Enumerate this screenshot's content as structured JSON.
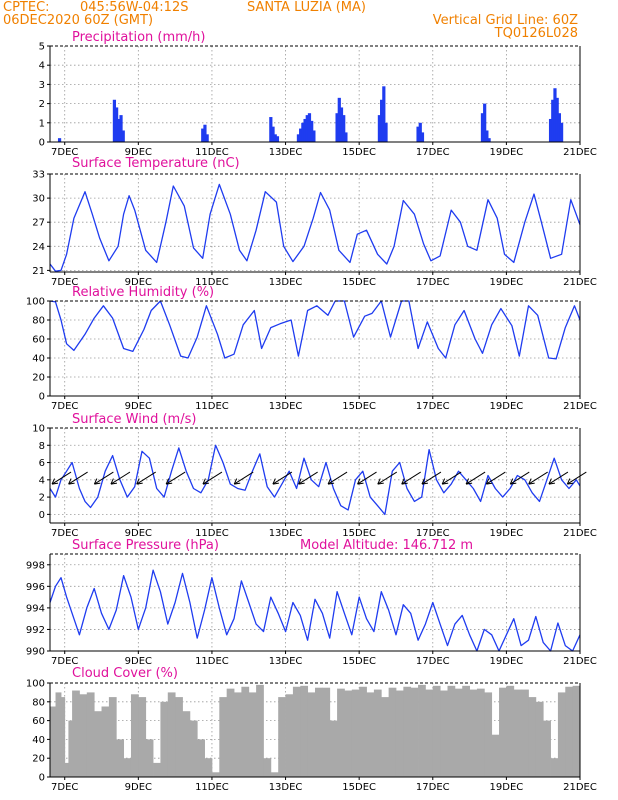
{
  "header": {
    "source": "CPTEC:",
    "location_coords": "045:56W-04:12S",
    "location_name": "SANTA LUZIA (MA)",
    "run": "06DEC2020 60Z (GMT)",
    "grid_note": "Vertical Grid Line: 60Z",
    "code": "TQ0126L028"
  },
  "colors": {
    "header": "#f08000",
    "title": "#e0119c",
    "series": "#1f3cf0",
    "cloud": "#a9a9a9",
    "grid": "#9a9a9a"
  },
  "chart_data": [
    {
      "type": "bar",
      "title": "Precipitation (mm/h)",
      "x_unit": "days since 06DEC 00Z",
      "xlim": [
        6.6,
        21.0
      ],
      "ylim": [
        0,
        5
      ],
      "y_ticks": [
        "0",
        "1",
        "2",
        "3",
        "4",
        "5"
      ],
      "x_ticks": [
        "7DEC",
        "9DEC",
        "11DEC",
        "13DEC",
        "15DEC",
        "17DEC",
        "19DEC",
        "21DEC"
      ],
      "x": [
        6.86,
        8.35,
        8.41,
        8.47,
        8.53,
        8.59,
        10.75,
        10.81,
        10.87,
        12.6,
        12.66,
        12.72,
        12.78,
        13.35,
        13.41,
        13.47,
        13.53,
        13.59,
        13.65,
        13.71,
        13.77,
        14.4,
        14.46,
        14.52,
        14.58,
        14.64,
        15.55,
        15.61,
        15.67,
        15.73,
        16.6,
        16.66,
        16.72,
        18.35,
        18.41,
        18.47,
        18.53,
        20.2,
        20.26,
        20.32,
        20.38,
        20.44,
        20.5
      ],
      "values": [
        0.2,
        2.2,
        1.8,
        1.2,
        1.4,
        0.6,
        0.7,
        0.9,
        0.4,
        1.3,
        0.8,
        0.4,
        0.3,
        0.4,
        0.7,
        1.0,
        1.2,
        1.4,
        1.5,
        1.1,
        0.6,
        1.5,
        2.3,
        1.8,
        1.4,
        0.5,
        1.4,
        2.2,
        2.9,
        1.0,
        0.8,
        1.0,
        0.5,
        1.5,
        2.0,
        0.6,
        0.2,
        1.2,
        2.2,
        2.8,
        2.3,
        1.5,
        1.0
      ]
    },
    {
      "type": "line",
      "title": "Surface Temperature (nC)",
      "x_unit": "days since 06DEC 00Z",
      "xlim": [
        6.6,
        21.0
      ],
      "ylim": [
        20.8,
        33
      ],
      "y_ticks": [
        "21",
        "24",
        "27",
        "30",
        "33"
      ],
      "x_ticks": [
        "7DEC",
        "9DEC",
        "11DEC",
        "13DEC",
        "15DEC",
        "17DEC",
        "19DEC",
        "21DEC"
      ],
      "x": [
        6.6,
        6.75,
        6.9,
        7.05,
        7.25,
        7.55,
        7.75,
        7.95,
        8.2,
        8.45,
        8.6,
        8.75,
        8.9,
        9.2,
        9.5,
        9.75,
        9.95,
        10.25,
        10.5,
        10.75,
        10.95,
        11.2,
        11.5,
        11.75,
        11.95,
        12.2,
        12.45,
        12.75,
        12.95,
        13.2,
        13.5,
        13.75,
        13.95,
        14.2,
        14.45,
        14.75,
        14.95,
        15.2,
        15.5,
        15.75,
        15.95,
        16.2,
        16.5,
        16.75,
        16.95,
        17.2,
        17.5,
        17.75,
        17.95,
        18.2,
        18.5,
        18.75,
        18.95,
        19.2,
        19.5,
        19.75,
        19.95,
        20.2,
        20.5,
        20.75,
        21.0
      ],
      "values": [
        21.8,
        20.9,
        21.0,
        23.0,
        27.5,
        30.8,
        28.0,
        25.0,
        22.2,
        24.0,
        28.0,
        30.3,
        28.5,
        23.5,
        22.0,
        27.0,
        31.5,
        29.0,
        23.8,
        22.5,
        28.0,
        31.7,
        28.0,
        23.5,
        22.2,
        26.0,
        30.8,
        29.5,
        24.0,
        22.1,
        24.0,
        27.5,
        30.7,
        28.5,
        23.5,
        22.0,
        25.5,
        26.0,
        23.0,
        21.8,
        24.0,
        29.7,
        28.0,
        24.3,
        22.2,
        22.8,
        28.5,
        27.0,
        24.0,
        23.5,
        29.8,
        27.5,
        23.0,
        22.0,
        27.0,
        30.5,
        27.0,
        22.5,
        23.0,
        29.8,
        26.7
      ]
    },
    {
      "type": "line",
      "title": "Relative Humidity (%)",
      "x_unit": "days since 06DEC 00Z",
      "xlim": [
        6.6,
        21.0
      ],
      "ylim": [
        0,
        100
      ],
      "y_ticks": [
        "0",
        "20",
        "40",
        "60",
        "80",
        "100"
      ],
      "x_ticks": [
        "7DEC",
        "9DEC",
        "11DEC",
        "13DEC",
        "15DEC",
        "17DEC",
        "19DEC",
        "21DEC"
      ],
      "x": [
        6.6,
        6.75,
        6.9,
        7.05,
        7.25,
        7.55,
        7.8,
        8.05,
        8.3,
        8.6,
        8.85,
        9.15,
        9.35,
        9.6,
        9.85,
        10.15,
        10.35,
        10.6,
        10.85,
        11.15,
        11.35,
        11.6,
        11.85,
        12.15,
        12.35,
        12.6,
        12.85,
        13.15,
        13.35,
        13.6,
        13.85,
        14.15,
        14.35,
        14.6,
        14.85,
        15.15,
        15.35,
        15.6,
        15.85,
        16.15,
        16.35,
        16.6,
        16.85,
        17.15,
        17.35,
        17.6,
        17.85,
        18.15,
        18.35,
        18.6,
        18.85,
        19.15,
        19.35,
        19.6,
        19.85,
        20.15,
        20.35,
        20.6,
        20.85,
        21.0
      ],
      "values": [
        100,
        99,
        80,
        55,
        48,
        65,
        82,
        95,
        82,
        50,
        47,
        70,
        90,
        100,
        75,
        42,
        40,
        62,
        95,
        65,
        40,
        44,
        75,
        90,
        50,
        72,
        76,
        80,
        42,
        90,
        95,
        85,
        100,
        100,
        62,
        84,
        87,
        100,
        62,
        100,
        100,
        50,
        78,
        50,
        40,
        75,
        90,
        60,
        45,
        75,
        92,
        74,
        42,
        95,
        85,
        40,
        39,
        72,
        95,
        80
      ]
    },
    {
      "type": "line",
      "title": "Surface Wind (m/s)",
      "x_unit": "days since 06DEC 00Z",
      "xlim": [
        6.6,
        21.0
      ],
      "ylim": [
        -1,
        10
      ],
      "y_ticks": [
        "0",
        "2",
        "4",
        "6",
        "8",
        "10"
      ],
      "x_ticks": [
        "7DEC",
        "9DEC",
        "11DEC",
        "13DEC",
        "15DEC",
        "17DEC",
        "19DEC",
        "21DEC"
      ],
      "x": [
        6.6,
        6.75,
        6.9,
        7.05,
        7.2,
        7.4,
        7.55,
        7.7,
        7.9,
        8.1,
        8.3,
        8.5,
        8.7,
        8.9,
        9.1,
        9.3,
        9.5,
        9.7,
        9.9,
        10.1,
        10.3,
        10.5,
        10.7,
        10.9,
        11.1,
        11.3,
        11.5,
        11.7,
        11.9,
        12.1,
        12.3,
        12.5,
        12.7,
        12.9,
        13.1,
        13.3,
        13.5,
        13.7,
        13.9,
        14.1,
        14.3,
        14.5,
        14.7,
        14.9,
        15.1,
        15.3,
        15.5,
        15.7,
        15.9,
        16.1,
        16.3,
        16.5,
        16.7,
        16.9,
        17.1,
        17.3,
        17.5,
        17.7,
        17.9,
        18.1,
        18.3,
        18.5,
        18.7,
        18.9,
        19.1,
        19.3,
        19.5,
        19.7,
        19.9,
        20.1,
        20.3,
        20.5,
        20.7,
        20.9,
        21.0
      ],
      "values": [
        3,
        2,
        4,
        5,
        6,
        3,
        1.5,
        0.8,
        2,
        5,
        6.8,
        4,
        2,
        3.2,
        7.3,
        6.5,
        3,
        2,
        5,
        7.7,
        5,
        3,
        2.5,
        4,
        8,
        6,
        3.5,
        3,
        2.8,
        5,
        7,
        3.2,
        2,
        3.5,
        5,
        3,
        6.5,
        4,
        3.2,
        6,
        3,
        1,
        0.5,
        4,
        5,
        2,
        1,
        0,
        5,
        6,
        3,
        1.5,
        2,
        7.5,
        4,
        2.5,
        3.5,
        5,
        4,
        3,
        1.5,
        4.5,
        3,
        2,
        3,
        4.5,
        4,
        2.5,
        1.5,
        4,
        6.5,
        4,
        3,
        4,
        3.3
      ],
      "barbs": [
        {
          "x": 6.9,
          "dir": "ne"
        },
        {
          "x": 7.35,
          "dir": "ne"
        },
        {
          "x": 8.05,
          "dir": "ne"
        },
        {
          "x": 8.5,
          "dir": "ne"
        },
        {
          "x": 9.2,
          "dir": "ne"
        },
        {
          "x": 10.0,
          "dir": "ne"
        },
        {
          "x": 11.0,
          "dir": "ne"
        },
        {
          "x": 11.85,
          "dir": "ne"
        },
        {
          "x": 12.9,
          "dir": "ne"
        },
        {
          "x": 13.6,
          "dir": "ne"
        },
        {
          "x": 14.4,
          "dir": "ne"
        },
        {
          "x": 15.2,
          "dir": "ne"
        },
        {
          "x": 15.75,
          "dir": "ne"
        },
        {
          "x": 16.4,
          "dir": "ne"
        },
        {
          "x": 16.95,
          "dir": "ne"
        },
        {
          "x": 17.5,
          "dir": "ne"
        },
        {
          "x": 18.15,
          "dir": "ne"
        },
        {
          "x": 18.7,
          "dir": "ne"
        },
        {
          "x": 19.35,
          "dir": "ne"
        },
        {
          "x": 19.85,
          "dir": "ne"
        },
        {
          "x": 20.4,
          "dir": "ne"
        },
        {
          "x": 20.9,
          "dir": "ne"
        }
      ]
    },
    {
      "type": "line",
      "title": "Surface Pressure (hPa)",
      "annotation": "Model Altitude: 146.712 m",
      "x_unit": "days since 06DEC 00Z",
      "xlim": [
        6.6,
        21.0
      ],
      "ylim": [
        990,
        999
      ],
      "y_ticks": [
        "990",
        "992",
        "994",
        "996",
        "998"
      ],
      "x_ticks": [
        "7DEC",
        "9DEC",
        "11DEC",
        "13DEC",
        "15DEC",
        "17DEC",
        "19DEC",
        "21DEC"
      ],
      "x": [
        6.6,
        6.75,
        6.9,
        7.05,
        7.2,
        7.4,
        7.6,
        7.8,
        8.0,
        8.2,
        8.4,
        8.6,
        8.8,
        9.0,
        9.2,
        9.4,
        9.6,
        9.8,
        10.0,
        10.2,
        10.4,
        10.6,
        10.8,
        11.0,
        11.2,
        11.4,
        11.6,
        11.8,
        12.0,
        12.2,
        12.4,
        12.6,
        12.8,
        13.0,
        13.2,
        13.4,
        13.6,
        13.8,
        14.0,
        14.2,
        14.4,
        14.6,
        14.8,
        15.0,
        15.2,
        15.4,
        15.6,
        15.8,
        16.0,
        16.2,
        16.4,
        16.6,
        16.8,
        17.0,
        17.2,
        17.4,
        17.6,
        17.8,
        18.0,
        18.2,
        18.4,
        18.6,
        18.8,
        19.0,
        19.2,
        19.4,
        19.6,
        19.8,
        20.0,
        20.2,
        20.4,
        20.6,
        20.8,
        21.0
      ],
      "values": [
        994.5,
        996,
        996.8,
        995,
        993.5,
        991.5,
        994,
        995.8,
        993.5,
        992,
        993.8,
        997,
        995,
        992,
        994,
        997.5,
        995.5,
        992.5,
        994.5,
        997.2,
        994.5,
        991.2,
        993.8,
        996.8,
        994,
        991.5,
        993,
        996.5,
        994.5,
        992.5,
        991.8,
        995,
        993.5,
        991.8,
        994.5,
        993.3,
        991,
        994.8,
        993.5,
        991.2,
        995.5,
        993.5,
        991.5,
        995,
        993,
        991.8,
        995.5,
        993.8,
        991.5,
        994.3,
        993.5,
        991,
        992.5,
        994.5,
        992.5,
        990.5,
        992.5,
        993.3,
        991.5,
        989.8,
        992,
        991.5,
        989.6,
        991.5,
        993,
        990.5,
        991,
        993.2,
        990.8,
        989.2,
        992.6,
        990.5,
        989.6,
        991.5
      ]
    },
    {
      "type": "area",
      "title": "Cloud Cover (%)",
      "x_unit": "days since 06DEC 00Z",
      "xlim": [
        6.6,
        21.0
      ],
      "ylim": [
        0,
        100
      ],
      "y_ticks": [
        "0",
        "20",
        "40",
        "60",
        "80",
        "100"
      ],
      "x_ticks": [
        "7DEC",
        "9DEC",
        "11DEC",
        "13DEC",
        "15DEC",
        "17DEC",
        "19DEC",
        "21DEC"
      ],
      "x": [
        6.6,
        6.75,
        6.9,
        7.0,
        7.1,
        7.2,
        7.4,
        7.6,
        7.8,
        8.0,
        8.2,
        8.4,
        8.6,
        8.8,
        9.0,
        9.2,
        9.4,
        9.6,
        9.8,
        10.0,
        10.2,
        10.4,
        10.6,
        10.8,
        11.0,
        11.2,
        11.4,
        11.6,
        11.8,
        12.0,
        12.2,
        12.4,
        12.6,
        12.8,
        13.0,
        13.2,
        13.4,
        13.6,
        13.8,
        14.0,
        14.2,
        14.4,
        14.6,
        14.8,
        15.0,
        15.2,
        15.4,
        15.6,
        15.8,
        16.0,
        16.2,
        16.4,
        16.6,
        16.8,
        17.0,
        17.2,
        17.4,
        17.6,
        17.8,
        18.0,
        18.2,
        18.4,
        18.6,
        18.8,
        19.0,
        19.2,
        19.4,
        19.6,
        19.8,
        20.0,
        20.2,
        20.4,
        20.6,
        20.8,
        21.0
      ],
      "values": [
        75,
        90,
        85,
        15,
        60,
        92,
        88,
        90,
        70,
        75,
        85,
        40,
        20,
        88,
        85,
        40,
        15,
        80,
        90,
        85,
        70,
        60,
        40,
        20,
        5,
        85,
        94,
        90,
        96,
        90,
        98,
        20,
        5,
        85,
        88,
        96,
        97,
        90,
        95,
        95,
        60,
        94,
        92,
        93,
        96,
        90,
        93,
        85,
        95,
        92,
        96,
        95,
        98,
        93,
        97,
        92,
        97,
        94,
        97,
        93,
        94,
        90,
        45,
        95,
        97,
        93,
        93,
        85,
        80,
        60,
        20,
        90,
        96,
        97,
        96
      ]
    }
  ]
}
